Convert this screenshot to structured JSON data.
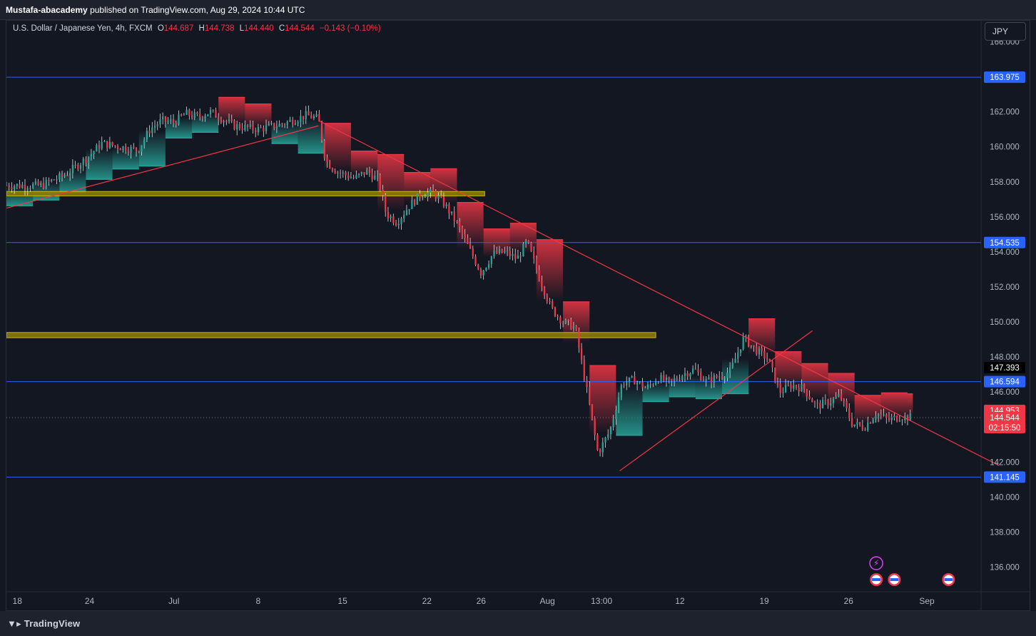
{
  "header": {
    "author": "Mustafa-abacademy",
    "publish_text": "published on TradingView.com, Aug 29, 2024 10:44 UTC"
  },
  "legend": {
    "symbol": "U.S. Dollar / Japanese Yen, 4h, FXCM",
    "open_label": "O",
    "open": "144.687",
    "high_label": "H",
    "high": "144.738",
    "low_label": "L",
    "low": "144.440",
    "close_label": "C",
    "close": "144.544",
    "change": "−0.143 (−0.10%)"
  },
  "currency_button": "JPY",
  "footer": {
    "brand": "TradingView"
  },
  "colors": {
    "background": "#131722",
    "up": "#26a69a",
    "down": "#f23645",
    "hline": "#2962ff",
    "zone": "#9e9a00",
    "trend": "#f23645"
  },
  "chart_data": {
    "type": "candlestick",
    "ylim": [
      134.6,
      167.2
    ],
    "y_ticks": [
      "166.000",
      "162.000",
      "160.000",
      "158.000",
      "156.000",
      "154.000",
      "152.000",
      "150.000",
      "148.000",
      "146.000",
      "142.000",
      "140.000",
      "138.000",
      "136.000"
    ],
    "x_ticks": [
      "18",
      "24",
      "Jul",
      "8",
      "15",
      "22",
      "26",
      "Aug",
      "13:00",
      "12",
      "19",
      "26",
      "Sep"
    ],
    "x_tick_time": [
      0,
      6,
      13,
      20,
      27,
      34,
      38.5,
      44,
      48.5,
      55,
      62,
      69,
      75.5
    ],
    "x_range": [
      -0.9,
      80
    ],
    "horizontal_levels": [
      {
        "value": 163.975,
        "label": "163.975"
      },
      {
        "value": 154.535,
        "label": "154.535"
      },
      {
        "value": 146.594,
        "label": "146.594"
      },
      {
        "value": 141.145,
        "label": "141.145"
      }
    ],
    "zones": [
      {
        "from": 157.2,
        "to": 157.45,
        "x_start": -0.9,
        "x_end": 38.8
      },
      {
        "from": 149.1,
        "to": 149.4,
        "x_start": -0.9,
        "x_end": 53
      }
    ],
    "price_labels": [
      {
        "value": 147.393,
        "label": "147.393",
        "style": "dark"
      },
      {
        "value": 144.953,
        "label": "144.953",
        "style": "red"
      },
      {
        "value": 144.544,
        "label": "144.544",
        "style": "red",
        "countdown": "02:15:50"
      }
    ],
    "trendlines": [
      {
        "t1": -0.9,
        "p1": 156.5,
        "t2": 25,
        "p2": 161.2
      },
      {
        "t1": 25,
        "p1": 161.5,
        "t2": 81.5,
        "p2": 141.8
      },
      {
        "t1": 50,
        "p1": 141.5,
        "t2": 66,
        "p2": 149.5
      }
    ],
    "close_path": [
      [
        -0.9,
        157.8
      ],
      [
        2,
        157.8
      ],
      [
        4,
        158.4
      ],
      [
        6,
        159.5
      ],
      [
        7,
        160.2
      ],
      [
        10,
        159.8
      ],
      [
        11,
        161.0
      ],
      [
        12,
        161.5
      ],
      [
        13,
        161.4
      ],
      [
        14,
        161.9
      ],
      [
        15,
        161.7
      ],
      [
        16,
        162.0
      ],
      [
        17,
        161.6
      ],
      [
        18,
        161.2
      ],
      [
        20,
        161.0
      ],
      [
        22,
        161.3
      ],
      [
        24,
        161.8
      ],
      [
        25,
        161.6
      ],
      [
        25.6,
        159.2
      ],
      [
        26.5,
        158.6
      ],
      [
        28,
        158.2
      ],
      [
        29,
        158.6
      ],
      [
        30,
        158.1
      ],
      [
        30.6,
        156.2
      ],
      [
        31.5,
        155.7
      ],
      [
        32.5,
        156.6
      ],
      [
        33.5,
        157.3
      ],
      [
        34.5,
        157.4
      ],
      [
        35.5,
        156.7
      ],
      [
        36.5,
        155.6
      ],
      [
        37.5,
        154.2
      ],
      [
        38.5,
        152.8
      ],
      [
        39.5,
        153.9
      ],
      [
        40.5,
        154.0
      ],
      [
        41.5,
        153.6
      ],
      [
        42.3,
        154.6
      ],
      [
        43.3,
        152.6
      ],
      [
        44.3,
        150.8
      ],
      [
        45.3,
        150.0
      ],
      [
        46.3,
        149.7
      ],
      [
        47.3,
        146.0
      ],
      [
        48.2,
        142.5
      ],
      [
        49.2,
        143.8
      ],
      [
        50.2,
        146.5
      ],
      [
        51.2,
        146.7
      ],
      [
        52.2,
        146.2
      ],
      [
        53.2,
        146.8
      ],
      [
        54.2,
        146.5
      ],
      [
        55.2,
        147.0
      ],
      [
        56.2,
        147.3
      ],
      [
        57.2,
        146.6
      ],
      [
        58.2,
        146.9
      ],
      [
        59.2,
        147.2
      ],
      [
        60.3,
        149.1
      ],
      [
        61.3,
        148.4
      ],
      [
        62.3,
        147.9
      ],
      [
        63.3,
        146.0
      ],
      [
        64.3,
        146.4
      ],
      [
        65.3,
        146.2
      ],
      [
        66.3,
        145.2
      ],
      [
        67.3,
        145.4
      ],
      [
        68.3,
        145.8
      ],
      [
        69.3,
        144.2
      ],
      [
        70.3,
        144.0
      ],
      [
        71.3,
        144.8
      ],
      [
        72.3,
        144.4
      ],
      [
        73.3,
        144.6
      ],
      [
        74.3,
        144.54
      ]
    ],
    "last_time": 74.3
  }
}
